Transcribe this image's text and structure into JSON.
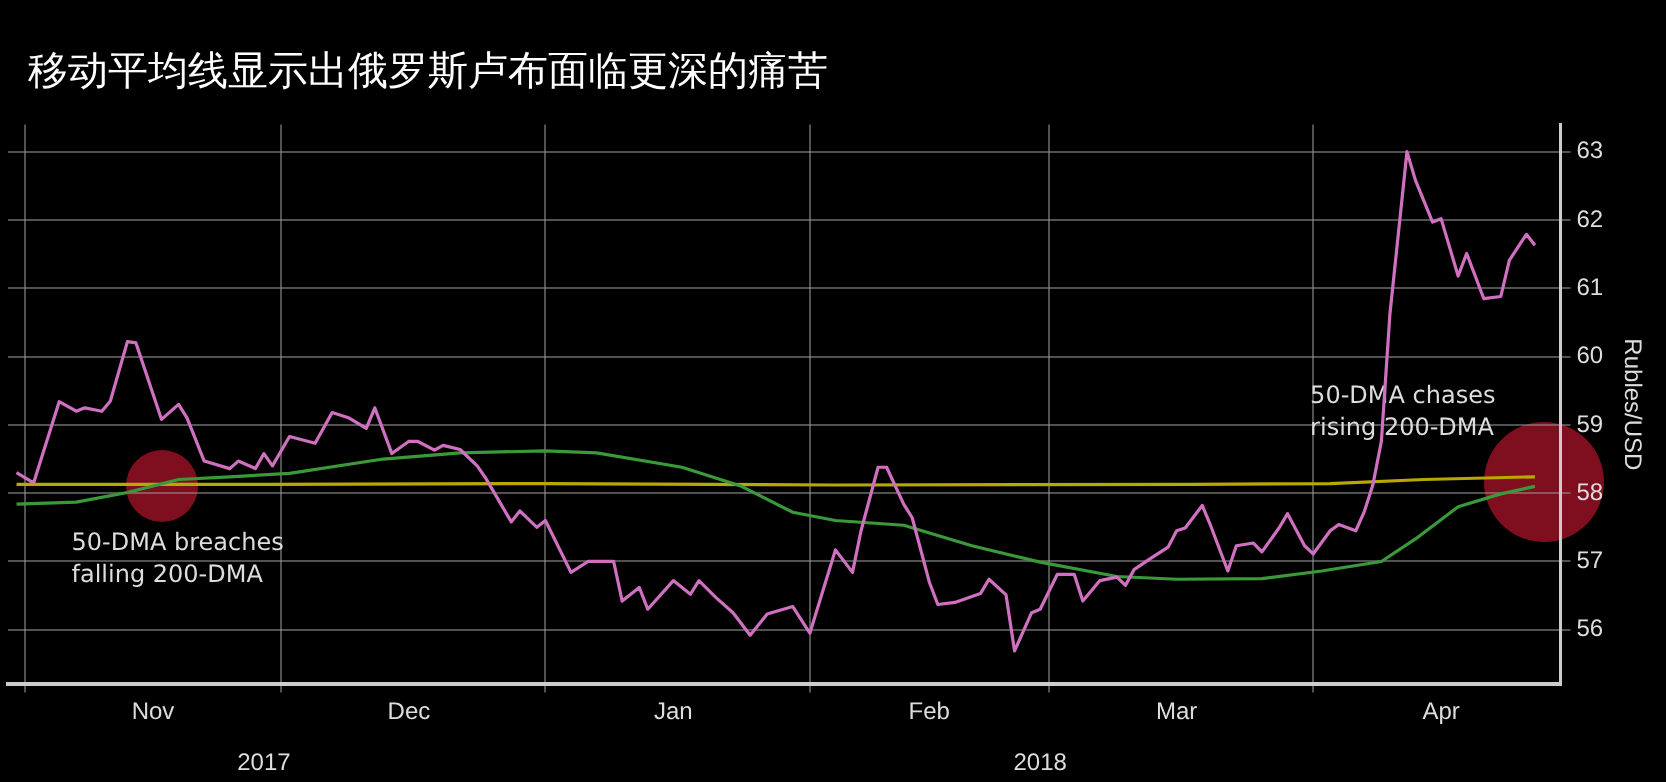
{
  "chart_data": {
    "type": "line",
    "title": "移动平均线显示出俄罗斯卢布面临更深的痛苦",
    "ylabel": "Rubles/USD",
    "xlim": [
      "2017-10-30",
      "2018-04-30"
    ],
    "xticks": [
      {
        "value": "2017-11-01",
        "label": null
      },
      {
        "value": "2017-11-16",
        "label": "Nov"
      },
      {
        "value": "2017-12-01",
        "label": null
      },
      {
        "value": "2017-12-16",
        "label": "Dec"
      },
      {
        "value": "2018-01-01",
        "label": null
      },
      {
        "value": "2018-01-16",
        "label": "Jan"
      },
      {
        "value": "2018-02-01",
        "label": null
      },
      {
        "value": "2018-02-15",
        "label": "Feb"
      },
      {
        "value": "2018-03-01",
        "label": null
      },
      {
        "value": "2018-03-16",
        "label": "Mar"
      },
      {
        "value": "2018-04-01",
        "label": null
      },
      {
        "value": "2018-04-16",
        "label": "Apr"
      }
    ],
    "x2lim": [
      "2017-10-30",
      "2018-04-30"
    ],
    "x2ticks": [
      {
        "value": "2017-11-29",
        "label": "2017"
      },
      {
        "value": "2018-02-28",
        "label": "2018"
      }
    ],
    "ylim": [
      55.2,
      63.4
    ],
    "yticks": [
      56,
      57,
      58,
      59,
      60,
      61,
      62,
      63
    ],
    "grid": true,
    "legend": false,
    "marker": "none",
    "line_style": "solid",
    "series": [
      {
        "color": "#d070c0",
        "x": [
          "2017-10-31",
          "2017-11-02",
          "2017-11-05",
          "2017-11-07",
          "2017-11-08",
          "2017-11-10",
          "2017-11-11",
          "2017-11-13",
          "2017-11-14",
          "2017-11-17",
          "2017-11-19",
          "2017-11-20",
          "2017-11-22",
          "2017-11-25",
          "2017-11-26",
          "2017-11-28",
          "2017-11-29",
          "2017-11-30",
          "2017-12-02",
          "2017-12-05",
          "2017-12-07",
          "2017-12-09",
          "2017-12-11",
          "2017-12-12",
          "2017-12-14",
          "2017-12-16",
          "2017-12-17",
          "2017-12-19",
          "2017-12-20",
          "2017-12-22",
          "2017-12-24",
          "2017-12-25",
          "2017-12-28",
          "2017-12-29",
          "2017-12-31",
          "2018-01-01",
          "2018-01-04",
          "2018-01-06",
          "2018-01-09",
          "2018-01-10",
          "2018-01-12",
          "2018-01-13",
          "2018-01-16",
          "2018-01-18",
          "2018-01-19",
          "2018-01-21",
          "2018-01-23",
          "2018-01-25",
          "2018-01-27",
          "2018-01-30",
          "2018-02-01",
          "2018-02-04",
          "2018-02-06",
          "2018-02-07",
          "2018-02-09",
          "2018-02-10",
          "2018-02-12",
          "2018-02-13",
          "2018-02-15",
          "2018-02-16",
          "2018-02-18",
          "2018-02-21",
          "2018-02-22",
          "2018-02-24",
          "2018-02-25",
          "2018-02-27",
          "2018-02-28",
          "2018-03-02",
          "2018-03-04",
          "2018-03-05",
          "2018-03-07",
          "2018-03-09",
          "2018-03-10",
          "2018-03-11",
          "2018-03-13",
          "2018-03-15",
          "2018-03-16",
          "2018-03-17",
          "2018-03-19",
          "2018-03-20",
          "2018-03-22",
          "2018-03-23",
          "2018-03-25",
          "2018-03-26",
          "2018-03-28",
          "2018-03-29",
          "2018-03-31",
          "2018-04-01",
          "2018-04-03",
          "2018-04-04",
          "2018-04-06",
          "2018-04-07",
          "2018-04-08",
          "2018-04-09",
          "2018-04-10",
          "2018-04-12",
          "2018-04-13",
          "2018-04-15",
          "2018-04-16",
          "2018-04-18",
          "2018-04-19",
          "2018-04-21",
          "2018-04-23",
          "2018-04-24",
          "2018-04-26",
          "2018-04-27"
        ],
        "values": [
          58.3,
          58.15,
          59.34,
          59.2,
          59.25,
          59.2,
          59.35,
          60.22,
          60.2,
          59.08,
          59.3,
          59.1,
          58.47,
          58.36,
          58.47,
          58.36,
          58.58,
          58.4,
          58.83,
          58.73,
          59.18,
          59.1,
          58.95,
          59.25,
          58.58,
          58.76,
          58.76,
          58.63,
          58.7,
          58.64,
          58.4,
          58.22,
          57.58,
          57.74,
          57.5,
          57.6,
          56.84,
          57.0,
          57.0,
          56.42,
          56.62,
          56.3,
          56.72,
          56.52,
          56.72,
          56.47,
          56.25,
          55.92,
          56.23,
          56.34,
          55.95,
          57.17,
          56.84,
          57.45,
          58.38,
          58.38,
          57.84,
          57.64,
          56.7,
          56.37,
          56.4,
          56.53,
          56.74,
          56.51,
          55.69,
          56.25,
          56.3,
          56.81,
          56.81,
          56.42,
          56.72,
          56.77,
          56.65,
          56.88,
          57.05,
          57.21,
          57.45,
          57.49,
          57.82,
          57.52,
          56.86,
          57.23,
          57.27,
          57.14,
          57.49,
          57.7,
          57.23,
          57.11,
          57.45,
          57.54,
          57.45,
          57.73,
          58.12,
          58.76,
          60.62,
          63.0,
          62.58,
          61.97,
          62.02,
          61.18,
          61.51,
          60.85,
          60.88,
          61.41,
          61.79,
          61.63
        ]
      },
      {
        "color": "#3a9a3a",
        "x": [
          "2017-10-31",
          "2017-11-07",
          "2017-11-13",
          "2017-11-19",
          "2017-11-25",
          "2017-12-02",
          "2017-12-13",
          "2017-12-22",
          "2018-01-01",
          "2018-01-07",
          "2018-01-17",
          "2018-01-24",
          "2018-01-30",
          "2018-02-04",
          "2018-02-12",
          "2018-02-20",
          "2018-02-28",
          "2018-03-09",
          "2018-03-16",
          "2018-03-26",
          "2018-04-02",
          "2018-04-09",
          "2018-04-13",
          "2018-04-18",
          "2018-04-23",
          "2018-04-27"
        ],
        "values": [
          57.84,
          57.87,
          58.01,
          58.2,
          58.24,
          58.29,
          58.5,
          58.59,
          58.62,
          58.59,
          58.38,
          58.1,
          57.72,
          57.6,
          57.53,
          57.23,
          56.99,
          56.78,
          56.74,
          56.75,
          56.86,
          57.0,
          57.33,
          57.8,
          57.99,
          58.1
        ]
      },
      {
        "color": "#b8a800",
        "x": [
          "2017-10-31",
          "2017-11-30",
          "2018-01-01",
          "2018-02-04",
          "2018-03-18",
          "2018-04-03",
          "2018-04-14",
          "2018-04-27"
        ],
        "values": [
          58.13,
          58.13,
          58.14,
          58.12,
          58.13,
          58.14,
          58.2,
          58.24
        ]
      }
    ],
    "annotations": [
      {
        "text": "50-DMA breaches\nfalling 200-DMA",
        "x": "2017-11-17",
        "y": 58.1
      },
      {
        "text": "50-DMA chases\nrising 200-DMA",
        "x": "2018-04-28",
        "y": 58.15
      }
    ]
  }
}
